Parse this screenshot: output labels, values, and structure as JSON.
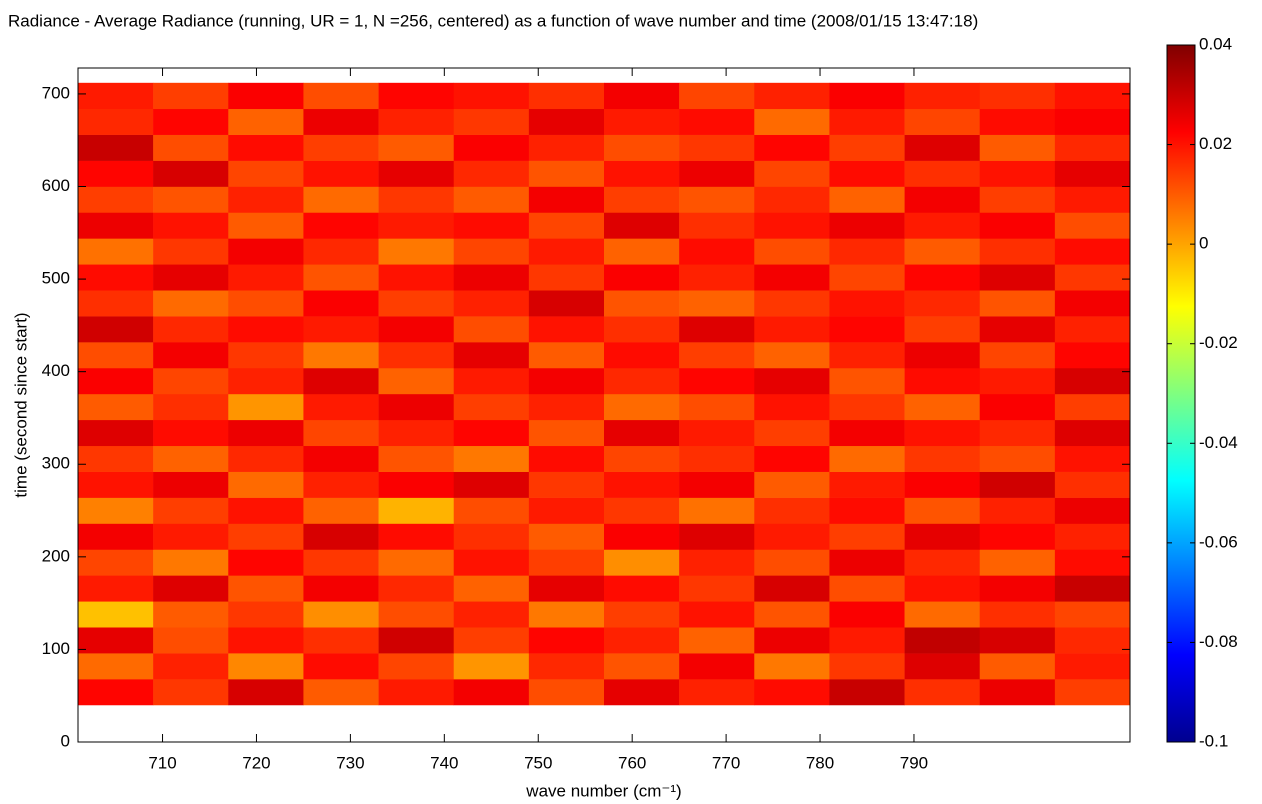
{
  "chart_data": {
    "type": "heatmap",
    "title": "Radiance - Average Radiance (running, UR = 1, N =256, centered) as a function of wave number and time (2008/01/15 13:47:18)",
    "xlabel": "wave number (cm⁻¹)",
    "ylabel": "time (second since start)",
    "colormap": "jet",
    "xlim": [
      701,
      813
    ],
    "ylim": [
      0,
      728
    ],
    "xticks": [
      710,
      720,
      730,
      740,
      750,
      760,
      770,
      780,
      790
    ],
    "yticks": [
      0,
      100,
      200,
      300,
      400,
      500,
      600,
      700
    ],
    "clim": [
      -0.1,
      0.04
    ],
    "cticks": [
      -0.1,
      -0.08,
      -0.06,
      -0.04,
      -0.02,
      0,
      0.02,
      0.04
    ],
    "x": [
      701,
      709,
      717,
      725,
      733,
      741,
      749,
      757,
      765,
      773,
      781,
      789,
      797,
      805,
      813
    ],
    "y": [
      40,
      68,
      96,
      124,
      152,
      180,
      208,
      236,
      264,
      292,
      320,
      348,
      376,
      404,
      432,
      460,
      488,
      516,
      544,
      572,
      600,
      628,
      656,
      684,
      712
    ],
    "z": [
      [
        0.022,
        0.015,
        0.028,
        0.01,
        0.019,
        0.024,
        0.012,
        0.026,
        0.018,
        0.021,
        0.03,
        0.016,
        0.025,
        0.014
      ],
      [
        0.008,
        0.018,
        0.004,
        0.021,
        0.013,
        0.002,
        0.017,
        0.011,
        0.024,
        0.006,
        0.015,
        0.027,
        0.01,
        0.019
      ],
      [
        0.026,
        0.012,
        0.02,
        0.016,
        0.029,
        0.014,
        0.022,
        0.018,
        0.009,
        0.025,
        0.019,
        0.031,
        0.028,
        0.017
      ],
      [
        -0.004,
        0.01,
        0.015,
        0.003,
        0.012,
        0.018,
        0.006,
        0.014,
        0.02,
        0.011,
        0.023,
        0.008,
        0.016,
        0.013
      ],
      [
        0.019,
        0.027,
        0.011,
        0.024,
        0.017,
        0.009,
        0.026,
        0.021,
        0.015,
        0.028,
        0.012,
        0.02,
        0.024,
        0.03
      ],
      [
        0.013,
        0.006,
        0.022,
        0.015,
        0.008,
        0.02,
        0.014,
        0.003,
        0.018,
        0.012,
        0.025,
        0.017,
        0.009,
        0.021
      ],
      [
        0.024,
        0.019,
        0.014,
        0.028,
        0.021,
        0.016,
        0.01,
        0.023,
        0.027,
        0.019,
        0.014,
        0.026,
        0.022,
        0.018
      ],
      [
        0.005,
        0.014,
        0.02,
        0.009,
        -0.002,
        0.012,
        0.019,
        0.015,
        0.007,
        0.016,
        0.021,
        0.011,
        0.018,
        0.025
      ],
      [
        0.02,
        0.025,
        0.008,
        0.018,
        0.023,
        0.027,
        0.015,
        0.02,
        0.024,
        0.01,
        0.019,
        0.023,
        0.029,
        0.016
      ],
      [
        0.015,
        0.009,
        0.017,
        0.024,
        0.011,
        0.006,
        0.021,
        0.013,
        0.016,
        0.022,
        0.008,
        0.015,
        0.012,
        0.02
      ],
      [
        0.027,
        0.021,
        0.025,
        0.013,
        0.018,
        0.022,
        0.011,
        0.026,
        0.019,
        0.014,
        0.024,
        0.02,
        0.017,
        0.027
      ],
      [
        0.01,
        0.016,
        0.002,
        0.019,
        0.025,
        0.014,
        0.018,
        0.008,
        0.012,
        0.02,
        0.015,
        0.009,
        0.023,
        0.014
      ],
      [
        0.023,
        0.013,
        0.018,
        0.027,
        0.009,
        0.019,
        0.024,
        0.017,
        0.022,
        0.026,
        0.011,
        0.021,
        0.019,
        0.028
      ],
      [
        0.012,
        0.024,
        0.015,
        0.006,
        0.016,
        0.026,
        0.01,
        0.021,
        0.014,
        0.009,
        0.018,
        0.025,
        0.013,
        0.022
      ],
      [
        0.029,
        0.017,
        0.021,
        0.019,
        0.024,
        0.012,
        0.02,
        0.016,
        0.027,
        0.019,
        0.022,
        0.014,
        0.026,
        0.018
      ],
      [
        0.016,
        0.008,
        0.012,
        0.023,
        0.014,
        0.018,
        0.028,
        0.011,
        0.009,
        0.015,
        0.02,
        0.017,
        0.011,
        0.024
      ],
      [
        0.021,
        0.026,
        0.019,
        0.011,
        0.02,
        0.025,
        0.015,
        0.023,
        0.018,
        0.024,
        0.013,
        0.022,
        0.027,
        0.015
      ],
      [
        0.007,
        0.015,
        0.024,
        0.017,
        0.006,
        0.013,
        0.019,
        0.009,
        0.021,
        0.012,
        0.017,
        0.01,
        0.016,
        0.021
      ],
      [
        0.025,
        0.02,
        0.01,
        0.022,
        0.019,
        0.021,
        0.013,
        0.027,
        0.016,
        0.02,
        0.025,
        0.019,
        0.023,
        0.012
      ],
      [
        0.014,
        0.011,
        0.018,
        0.008,
        0.015,
        0.01,
        0.024,
        0.014,
        0.011,
        0.017,
        0.009,
        0.024,
        0.014,
        0.019
      ],
      [
        0.022,
        0.028,
        0.013,
        0.02,
        0.026,
        0.017,
        0.011,
        0.02,
        0.025,
        0.013,
        0.021,
        0.016,
        0.02,
        0.026
      ],
      [
        0.03,
        0.012,
        0.021,
        0.014,
        0.01,
        0.023,
        0.018,
        0.012,
        0.015,
        0.022,
        0.014,
        0.027,
        0.01,
        0.017
      ],
      [
        0.017,
        0.022,
        0.009,
        0.025,
        0.018,
        0.015,
        0.026,
        0.019,
        0.021,
        0.008,
        0.019,
        0.013,
        0.021,
        0.023
      ],
      [
        0.019,
        0.014,
        0.023,
        0.012,
        0.022,
        0.02,
        0.016,
        0.024,
        0.013,
        0.018,
        0.023,
        0.018,
        0.016,
        0.02
      ]
    ]
  }
}
